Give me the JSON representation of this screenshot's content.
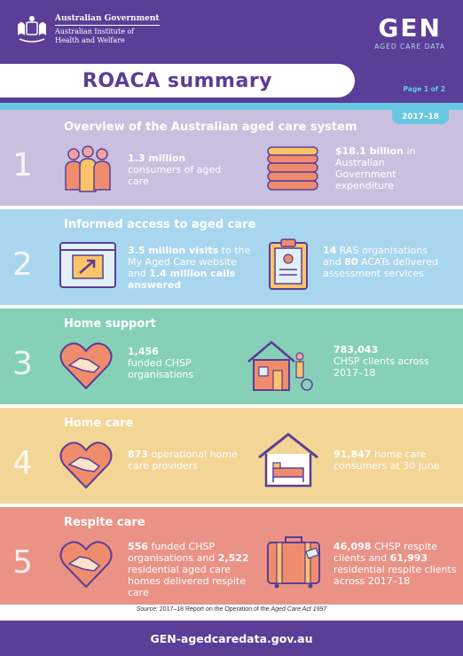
{
  "header": {
    "gov_name": "Australian Government",
    "gov_institute_line1": "Australian Institute of",
    "gov_institute_line2": "Health and Welfare",
    "logo_word": "GEN",
    "logo_sub": "AGED CARE DATA",
    "title": "ROACA summary",
    "page_label": "Page 1 of 2",
    "year": "2017–18"
  },
  "sections": [
    {
      "number": "1",
      "title": "Overview of the Australian aged care system",
      "left": {
        "bold": "1.3 million",
        "rest": "consumers of aged care"
      },
      "right": {
        "bold": "$18.1 billion",
        "rest": " in Australian Government expenditure"
      }
    },
    {
      "number": "2",
      "title": "Informed access to aged care",
      "left": {
        "bold1": "3.5 million visits",
        "mid": " to the My Aged Care website and ",
        "bold2": "1.4 million calls answered"
      },
      "right": {
        "bold1": "14",
        "mid": " RAS organisations and ",
        "bold2": "80",
        "rest": " ACATs delivered assessment services"
      }
    },
    {
      "number": "3",
      "title": "Home support",
      "left": {
        "bold": "1,456",
        "rest": "funded CHSP organisations"
      },
      "right": {
        "bold": "783,043",
        "rest": "CHSP clients across 2017–18"
      }
    },
    {
      "number": "4",
      "title": "Home care",
      "left": {
        "bold": "873",
        "rest": " operational home care providers"
      },
      "right": {
        "bold": "91,847",
        "rest": " home care consumers at 30 june"
      }
    },
    {
      "number": "5",
      "title": "Respite care",
      "left": {
        "bold1": "556",
        "mid": " funded CHSP organisations and ",
        "bold2": "2,522",
        "rest": " residential aged care homes delivered respite care"
      },
      "right": {
        "bold1": "46,098",
        "mid": " CHSP respite clients and ",
        "bold2": "61,993",
        "rest": " residential respite clients across 2017–18"
      }
    }
  ],
  "source": {
    "label": "Source:",
    "text": " 2017–18 Report on the Operation of the ",
    "act": "Aged Care Act 1997"
  },
  "footer": {
    "url": "GEN-agedcaredata.gov.au"
  },
  "colors": {
    "purple": "#5a3e97",
    "cyan": "#67c7e0",
    "section1": "#c9c0e0",
    "section2": "#a8d6ee",
    "section3": "#86d0b8",
    "section4": "#f3d595",
    "section5": "#ea9286"
  }
}
